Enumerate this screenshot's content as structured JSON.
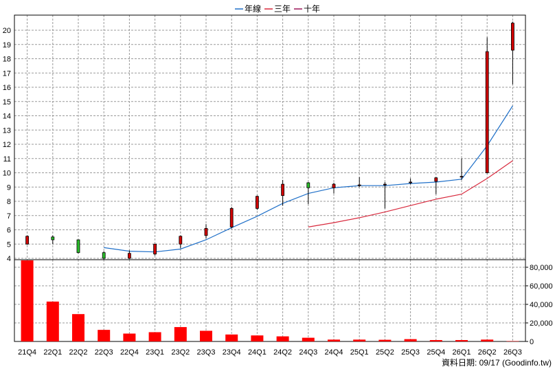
{
  "chart_data": {
    "type": "candlestick",
    "categories": [
      "21Q4",
      "22Q1",
      "22Q2",
      "22Q3",
      "22Q4",
      "23Q1",
      "23Q2",
      "23Q3",
      "23Q4",
      "24Q1",
      "24Q2",
      "24Q3",
      "24Q4",
      "25Q1",
      "25Q2",
      "25Q3",
      "25Q4",
      "26Q1",
      "26Q2",
      "26Q3"
    ],
    "legend": [
      {
        "label": "年線",
        "color": "#1e6fc8"
      },
      {
        "label": "三年",
        "color": "#d8283c"
      },
      {
        "label": "十年",
        "color": "#9b1458"
      }
    ],
    "candles": [
      {
        "open": 5.0,
        "high": 5.6,
        "low": 4.95,
        "close": 5.55
      },
      {
        "open": 5.5,
        "high": 5.6,
        "low": 5.0,
        "close": 5.3
      },
      {
        "open": 5.3,
        "high": 5.3,
        "low": 4.35,
        "close": 4.4
      },
      {
        "open": 4.4,
        "high": 4.5,
        "low": 3.9,
        "close": 4.0
      },
      {
        "open": 4.0,
        "high": 4.55,
        "low": 3.95,
        "close": 4.35
      },
      {
        "open": 4.3,
        "high": 5.0,
        "low": 4.2,
        "close": 5.0
      },
      {
        "open": 5.0,
        "high": 5.6,
        "low": 4.7,
        "close": 5.55
      },
      {
        "open": 5.6,
        "high": 6.4,
        "low": 5.4,
        "close": 6.1
      },
      {
        "open": 6.2,
        "high": 7.6,
        "low": 6.1,
        "close": 7.5
      },
      {
        "open": 7.5,
        "high": 8.4,
        "low": 7.4,
        "close": 8.35
      },
      {
        "open": 8.4,
        "high": 9.5,
        "low": 7.7,
        "close": 9.2
      },
      {
        "open": 9.3,
        "high": 9.35,
        "low": 7.8,
        "close": 8.95
      },
      {
        "open": 8.95,
        "high": 9.3,
        "low": 8.55,
        "close": 9.2
      },
      {
        "open": 9.1,
        "high": 9.7,
        "low": 9.0,
        "close": 9.15
      },
      {
        "open": 9.15,
        "high": 9.35,
        "low": 7.5,
        "close": 9.2
      },
      {
        "open": 9.3,
        "high": 9.6,
        "low": 9.2,
        "close": 9.35
      },
      {
        "open": 9.4,
        "high": 9.7,
        "low": 8.5,
        "close": 9.65
      },
      {
        "open": 9.7,
        "high": 11.0,
        "low": 9.5,
        "close": 9.75
      },
      {
        "open": 10.0,
        "high": 19.5,
        "low": 9.95,
        "close": 18.5
      },
      {
        "open": 18.6,
        "high": 20.6,
        "low": 16.2,
        "close": 20.5
      }
    ],
    "series": [
      {
        "name": "年線",
        "values": [
          null,
          null,
          null,
          4.75,
          4.5,
          4.45,
          4.65,
          5.3,
          6.15,
          6.95,
          7.85,
          8.55,
          8.95,
          9.1,
          9.1,
          9.25,
          9.35,
          9.55,
          11.9,
          14.7
        ]
      },
      {
        "name": "三年",
        "values": [
          null,
          null,
          null,
          null,
          null,
          null,
          null,
          null,
          null,
          null,
          null,
          6.2,
          6.5,
          6.85,
          7.25,
          7.7,
          8.15,
          8.5,
          9.6,
          10.85
        ]
      },
      {
        "name": "十年",
        "values": [
          null,
          null,
          null,
          null,
          null,
          null,
          null,
          null,
          null,
          null,
          null,
          null,
          null,
          null,
          null,
          null,
          null,
          null,
          null,
          null
        ]
      }
    ],
    "price_axis": {
      "min": 4,
      "max": 20,
      "step": 1
    },
    "volume_axis": {
      "min": 0,
      "max": 80000,
      "step": 20000
    },
    "volume": [
      89000,
      43000,
      29500,
      12500,
      8500,
      10000,
      15500,
      11500,
      7500,
      6500,
      5500,
      4000,
      2000,
      2000,
      1800,
      2500,
      1500,
      1500,
      2000,
      400
    ],
    "price_ticks": [
      "4",
      "5",
      "6",
      "7",
      "8",
      "9",
      "10",
      "11",
      "12",
      "13",
      "14",
      "15",
      "16",
      "17",
      "18",
      "19",
      "20"
    ],
    "volume_ticks": [
      "0",
      "20,000",
      "40,000",
      "60,000",
      "80,000"
    ],
    "grid": true,
    "legend_position": "top-center",
    "colors": {
      "up": "#d00000",
      "down": "#2bbd2b",
      "volume": "#ff0000",
      "grid": "#999999"
    },
    "source": "資料日期: 09/17  (Goodinfo.tw)"
  }
}
